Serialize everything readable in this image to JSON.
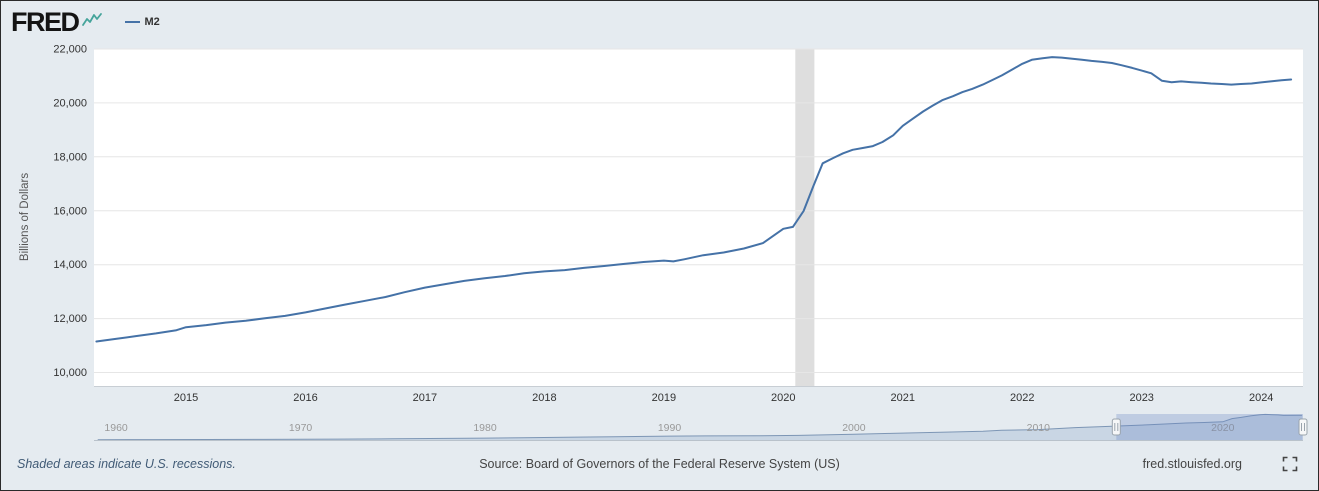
{
  "header": {
    "logo_text": "FRED",
    "legend": {
      "series_label": "M2"
    }
  },
  "colors": {
    "series": "#4572a7",
    "background": "#e5ebf0",
    "plot_background": "#ffffff",
    "gridline": "#e6e6e6",
    "recession_band": "#dedede",
    "axis_text": "#333333",
    "axis_line": "#c8ced4",
    "nav_fill": "#c9d6e4",
    "nav_line": "#7d96b5",
    "nav_mask": "rgba(102,133,194,0.3)",
    "nav_label": "#999999",
    "nav_axis_line": "#b9c2cb",
    "handle_fill": "#f6f7f8",
    "handle_stroke": "#9aa4ad",
    "logo_icon": "#45a49b"
  },
  "chart_data": {
    "type": "line",
    "title": "M2",
    "ylabel": "Billions of Dollars",
    "xlim": [
      2014.23,
      2024.35
    ],
    "ylim": [
      9500,
      22000
    ],
    "y_ticks": [
      10000,
      12000,
      14000,
      16000,
      18000,
      20000,
      22000
    ],
    "x_ticks": [
      2015,
      2016,
      2017,
      2018,
      2019,
      2020,
      2021,
      2022,
      2023,
      2024
    ],
    "recession_bands": [
      [
        2020.1,
        2020.26
      ]
    ],
    "series": [
      {
        "name": "M2",
        "color": "#4572a7",
        "points": [
          [
            2014.25,
            11150
          ],
          [
            2014.42,
            11250
          ],
          [
            2014.58,
            11350
          ],
          [
            2014.75,
            11450
          ],
          [
            2014.92,
            11570
          ],
          [
            2015.0,
            11680
          ],
          [
            2015.17,
            11760
          ],
          [
            2015.33,
            11850
          ],
          [
            2015.5,
            11920
          ],
          [
            2015.67,
            12020
          ],
          [
            2015.83,
            12100
          ],
          [
            2016.0,
            12230
          ],
          [
            2016.17,
            12380
          ],
          [
            2016.33,
            12520
          ],
          [
            2016.5,
            12660
          ],
          [
            2016.67,
            12800
          ],
          [
            2016.83,
            12980
          ],
          [
            2017.0,
            13150
          ],
          [
            2017.17,
            13280
          ],
          [
            2017.33,
            13400
          ],
          [
            2017.5,
            13500
          ],
          [
            2017.67,
            13580
          ],
          [
            2017.83,
            13680
          ],
          [
            2018.0,
            13750
          ],
          [
            2018.17,
            13800
          ],
          [
            2018.33,
            13880
          ],
          [
            2018.5,
            13950
          ],
          [
            2018.67,
            14030
          ],
          [
            2018.83,
            14100
          ],
          [
            2019.0,
            14150
          ],
          [
            2019.08,
            14120
          ],
          [
            2019.17,
            14200
          ],
          [
            2019.33,
            14350
          ],
          [
            2019.5,
            14450
          ],
          [
            2019.67,
            14600
          ],
          [
            2019.83,
            14800
          ],
          [
            2020.0,
            15330
          ],
          [
            2020.08,
            15400
          ],
          [
            2020.17,
            15990
          ],
          [
            2020.25,
            16900
          ],
          [
            2020.33,
            17760
          ],
          [
            2020.42,
            17960
          ],
          [
            2020.5,
            18130
          ],
          [
            2020.58,
            18260
          ],
          [
            2020.67,
            18330
          ],
          [
            2020.75,
            18400
          ],
          [
            2020.83,
            18550
          ],
          [
            2020.92,
            18800
          ],
          [
            2021.0,
            19150
          ],
          [
            2021.08,
            19400
          ],
          [
            2021.17,
            19680
          ],
          [
            2021.25,
            19900
          ],
          [
            2021.33,
            20100
          ],
          [
            2021.42,
            20250
          ],
          [
            2021.5,
            20400
          ],
          [
            2021.58,
            20520
          ],
          [
            2021.67,
            20680
          ],
          [
            2021.75,
            20850
          ],
          [
            2021.83,
            21020
          ],
          [
            2021.92,
            21250
          ],
          [
            2022.0,
            21450
          ],
          [
            2022.08,
            21600
          ],
          [
            2022.17,
            21660
          ],
          [
            2022.25,
            21700
          ],
          [
            2022.33,
            21680
          ],
          [
            2022.42,
            21640
          ],
          [
            2022.5,
            21600
          ],
          [
            2022.58,
            21560
          ],
          [
            2022.67,
            21520
          ],
          [
            2022.75,
            21480
          ],
          [
            2022.83,
            21400
          ],
          [
            2022.92,
            21300
          ],
          [
            2023.0,
            21200
          ],
          [
            2023.08,
            21100
          ],
          [
            2023.17,
            20820
          ],
          [
            2023.25,
            20770
          ],
          [
            2023.33,
            20800
          ],
          [
            2023.42,
            20770
          ],
          [
            2023.5,
            20750
          ],
          [
            2023.58,
            20720
          ],
          [
            2023.67,
            20700
          ],
          [
            2023.75,
            20680
          ],
          [
            2023.83,
            20700
          ],
          [
            2023.92,
            20720
          ],
          [
            2024.0,
            20760
          ],
          [
            2024.08,
            20800
          ],
          [
            2024.17,
            20840
          ],
          [
            2024.25,
            20870
          ]
        ]
      }
    ]
  },
  "navigator": {
    "xlim": [
      1958.8,
      2024.35
    ],
    "selected_range": [
      2014.23,
      2024.35
    ],
    "tick_years": [
      1960,
      1970,
      1980,
      1990,
      2000,
      2010,
      2020
    ],
    "ymax": 22000,
    "points": [
      [
        1959,
        290
      ],
      [
        1962,
        350
      ],
      [
        1965,
        440
      ],
      [
        1968,
        530
      ],
      [
        1970,
        600
      ],
      [
        1972,
        740
      ],
      [
        1975,
        1020
      ],
      [
        1978,
        1370
      ],
      [
        1980,
        1600
      ],
      [
        1982,
        1910
      ],
      [
        1985,
        2460
      ],
      [
        1987,
        2830
      ],
      [
        1990,
        3280
      ],
      [
        1992,
        3430
      ],
      [
        1995,
        3630
      ],
      [
        1997,
        3920
      ],
      [
        2000,
        4920
      ],
      [
        2002,
        5600
      ],
      [
        2005,
        6680
      ],
      [
        2007,
        7450
      ],
      [
        2008,
        8190
      ],
      [
        2010,
        8800
      ],
      [
        2012,
        10450
      ],
      [
        2014,
        11650
      ],
      [
        2016,
        12850
      ],
      [
        2018,
        14350
      ],
      [
        2019,
        14800
      ],
      [
        2020,
        15400
      ],
      [
        2020.5,
        18150
      ],
      [
        2021,
        19150
      ],
      [
        2021.5,
        20400
      ],
      [
        2022,
        21450
      ],
      [
        2022.3,
        21700
      ],
      [
        2023,
        21200
      ],
      [
        2023.3,
        20800
      ],
      [
        2024.3,
        20870
      ]
    ]
  },
  "footer": {
    "recession_note": "Shaded areas indicate U.S. recessions.",
    "source": "Source: Board of Governors of the Federal Reserve System (US)",
    "site": "fred.stlouisfed.org"
  }
}
